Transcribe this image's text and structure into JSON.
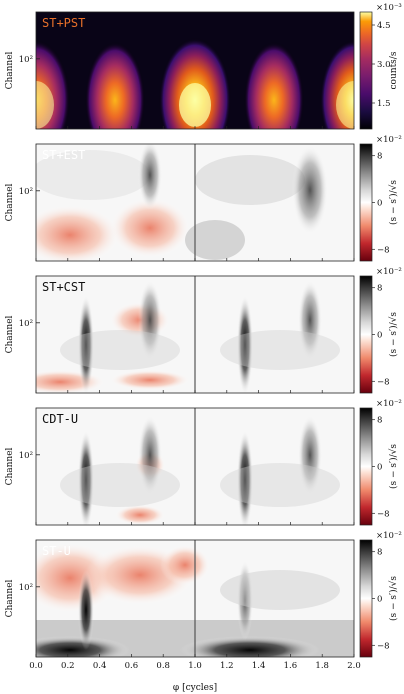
{
  "chart_data": {
    "type": "heatmap",
    "x_axis": {
      "label": "φ [cycles]",
      "range": [
        0.0,
        2.0
      ],
      "ticks": [
        "0.0",
        "0.2",
        "0.4",
        "0.6",
        "0.8",
        "1.0",
        "1.2",
        "1.4",
        "1.6",
        "1.8",
        "2.0"
      ]
    },
    "y_axis": {
      "label": "Channel",
      "scale": "log",
      "tick_label": "10²"
    },
    "panels": [
      {
        "label": "ST+PST",
        "label_color": "#e8702a",
        "colormap": "inferno",
        "colorbar": {
          "label": "counts/s",
          "exponent": "×10⁻³",
          "ticks": [
            "1.5",
            "3.0",
            "4.5"
          ],
          "range": [
            0.5,
            5.0
          ]
        },
        "peaks_at_phase": [
          0.0,
          0.5,
          1.0,
          1.5,
          2.0
        ]
      },
      {
        "label": "ST+EST",
        "label_color": "#ffffff",
        "colormap": "red-white-gray",
        "colorbar": {
          "label": "(s − s′)/√s",
          "exponent": "×10⁻²",
          "ticks": [
            "8",
            "0",
            "−8"
          ],
          "range": [
            -10,
            10
          ]
        }
      },
      {
        "label": "ST+CST",
        "label_color": "#111111",
        "colormap": "red-white-gray",
        "colorbar": {
          "label": "(s − s′)/√s",
          "exponent": "×10⁻²",
          "ticks": [
            "8",
            "0",
            "−8"
          ],
          "range": [
            -10,
            10
          ]
        }
      },
      {
        "label": "CDT-U",
        "label_color": "#111111",
        "colormap": "red-white-gray",
        "colorbar": {
          "label": "(s − s′)/√s",
          "exponent": "×10⁻²",
          "ticks": [
            "8",
            "0",
            "−8"
          ],
          "range": [
            -10,
            10
          ]
        }
      },
      {
        "label": "ST-U",
        "label_color": "#ffffff",
        "colormap": "red-white-gray",
        "colorbar": {
          "label": "(s − s′)/√s",
          "exponent": "×10⁻²",
          "ticks": [
            "8",
            "0",
            "−8"
          ],
          "range": [
            -10,
            10
          ]
        }
      }
    ],
    "vertical_line_at_phase": 1.0
  }
}
